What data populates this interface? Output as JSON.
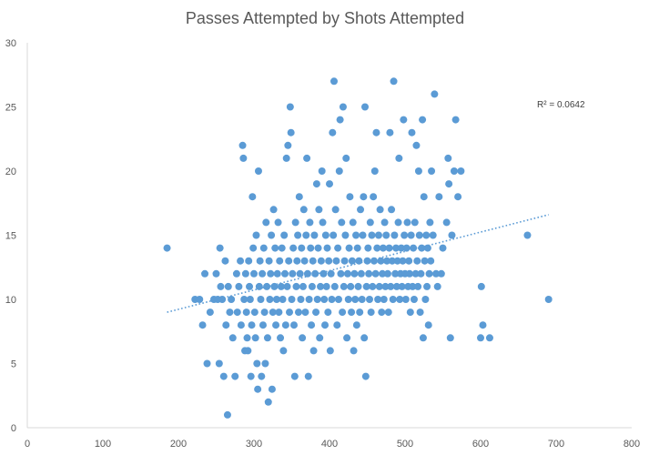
{
  "chart_data": {
    "type": "scatter",
    "title": "Passes Attempted by Shots Attempted",
    "xlabel": "",
    "ylabel": "",
    "xlim": [
      0,
      800
    ],
    "ylim": [
      0,
      30
    ],
    "x_ticks": [
      0,
      100,
      200,
      300,
      400,
      500,
      600,
      700,
      800
    ],
    "y_ticks": [
      0,
      5,
      10,
      15,
      20,
      25,
      30
    ],
    "grid": false,
    "legend": "none",
    "marker_color": "#5B9BD5",
    "trendline": {
      "type": "linear",
      "x_range": [
        185,
        690
      ],
      "y_start": 9.0,
      "y_end": 16.6,
      "color": "#5B9BD5",
      "style": "dotted",
      "r_squared_label": "R² = 0.0642"
    },
    "points": [
      [
        185,
        14
      ],
      [
        222,
        10
      ],
      [
        228,
        10
      ],
      [
        232,
        8
      ],
      [
        235,
        12
      ],
      [
        238,
        5
      ],
      [
        242,
        9
      ],
      [
        247,
        10
      ],
      [
        250,
        12
      ],
      [
        252,
        10
      ],
      [
        254,
        5
      ],
      [
        255,
        14
      ],
      [
        256,
        11
      ],
      [
        258,
        10
      ],
      [
        260,
        4
      ],
      [
        262,
        13
      ],
      [
        263,
        8
      ],
      [
        265,
        1
      ],
      [
        266,
        11
      ],
      [
        268,
        9
      ],
      [
        270,
        10
      ],
      [
        272,
        7
      ],
      [
        275,
        4
      ],
      [
        277,
        12
      ],
      [
        278,
        9
      ],
      [
        280,
        11
      ],
      [
        282,
        13
      ],
      [
        283,
        8
      ],
      [
        285,
        22
      ],
      [
        286,
        21
      ],
      [
        287,
        10
      ],
      [
        288,
        6
      ],
      [
        289,
        12
      ],
      [
        290,
        9
      ],
      [
        291,
        7
      ],
      [
        292,
        6
      ],
      [
        293,
        13
      ],
      [
        294,
        11
      ],
      [
        295,
        10
      ],
      [
        296,
        4
      ],
      [
        297,
        8
      ],
      [
        298,
        18
      ],
      [
        299,
        14
      ],
      [
        300,
        12
      ],
      [
        301,
        9
      ],
      [
        302,
        7
      ],
      [
        303,
        15
      ],
      [
        304,
        5
      ],
      [
        305,
        3
      ],
      [
        306,
        20
      ],
      [
        307,
        11
      ],
      [
        308,
        13
      ],
      [
        309,
        10
      ],
      [
        310,
        4
      ],
      [
        311,
        12
      ],
      [
        312,
        8
      ],
      [
        313,
        14
      ],
      [
        314,
        9
      ],
      [
        315,
        5
      ],
      [
        316,
        16
      ],
      [
        317,
        11
      ],
      [
        318,
        7
      ],
      [
        319,
        2
      ],
      [
        320,
        13
      ],
      [
        321,
        10
      ],
      [
        322,
        12
      ],
      [
        323,
        15
      ],
      [
        324,
        3
      ],
      [
        325,
        9
      ],
      [
        326,
        17
      ],
      [
        327,
        11
      ],
      [
        328,
        14
      ],
      [
        329,
        8
      ],
      [
        330,
        10
      ],
      [
        331,
        12
      ],
      [
        332,
        16
      ],
      [
        333,
        9
      ],
      [
        334,
        13
      ],
      [
        335,
        7
      ],
      [
        336,
        11
      ],
      [
        337,
        14
      ],
      [
        338,
        10
      ],
      [
        339,
        6
      ],
      [
        340,
        15
      ],
      [
        341,
        12
      ],
      [
        342,
        8
      ],
      [
        343,
        21
      ],
      [
        344,
        11
      ],
      [
        345,
        22
      ],
      [
        346,
        13
      ],
      [
        347,
        9
      ],
      [
        348,
        25
      ],
      [
        349,
        23
      ],
      [
        350,
        10
      ],
      [
        351,
        12
      ],
      [
        352,
        14
      ],
      [
        353,
        8
      ],
      [
        354,
        4
      ],
      [
        355,
        16
      ],
      [
        356,
        11
      ],
      [
        357,
        13
      ],
      [
        358,
        15
      ],
      [
        359,
        9
      ],
      [
        360,
        18
      ],
      [
        361,
        12
      ],
      [
        362,
        10
      ],
      [
        363,
        14
      ],
      [
        364,
        7
      ],
      [
        365,
        11
      ],
      [
        366,
        17
      ],
      [
        367,
        13
      ],
      [
        368,
        9
      ],
      [
        369,
        15
      ],
      [
        370,
        21
      ],
      [
        371,
        12
      ],
      [
        372,
        4
      ],
      [
        373,
        10
      ],
      [
        374,
        16
      ],
      [
        375,
        14
      ],
      [
        376,
        8
      ],
      [
        377,
        11
      ],
      [
        378,
        13
      ],
      [
        379,
        6
      ],
      [
        380,
        15
      ],
      [
        381,
        12
      ],
      [
        382,
        9
      ],
      [
        383,
        19
      ],
      [
        384,
        10
      ],
      [
        385,
        14
      ],
      [
        386,
        17
      ],
      [
        387,
        7
      ],
      [
        388,
        11
      ],
      [
        389,
        13
      ],
      [
        390,
        20
      ],
      [
        391,
        16
      ],
      [
        392,
        12
      ],
      [
        393,
        10
      ],
      [
        394,
        8
      ],
      [
        395,
        15
      ],
      [
        396,
        11
      ],
      [
        397,
        14
      ],
      [
        398,
        9
      ],
      [
        399,
        13
      ],
      [
        400,
        19
      ],
      [
        401,
        6
      ],
      [
        402,
        12
      ],
      [
        403,
        10
      ],
      [
        404,
        23
      ],
      [
        405,
        15
      ],
      [
        406,
        27
      ],
      [
        407,
        11
      ],
      [
        408,
        17
      ],
      [
        409,
        13
      ],
      [
        410,
        8
      ],
      [
        411,
        14
      ],
      [
        412,
        10
      ],
      [
        413,
        20
      ],
      [
        414,
        24
      ],
      [
        415,
        12
      ],
      [
        416,
        16
      ],
      [
        417,
        9
      ],
      [
        418,
        25
      ],
      [
        419,
        11
      ],
      [
        420,
        13
      ],
      [
        421,
        15
      ],
      [
        422,
        21
      ],
      [
        423,
        7
      ],
      [
        424,
        12
      ],
      [
        425,
        10
      ],
      [
        426,
        14
      ],
      [
        427,
        18
      ],
      [
        428,
        11
      ],
      [
        429,
        9
      ],
      [
        430,
        13
      ],
      [
        431,
        16
      ],
      [
        432,
        6
      ],
      [
        433,
        12
      ],
      [
        434,
        10
      ],
      [
        435,
        15
      ],
      [
        436,
        8
      ],
      [
        437,
        14
      ],
      [
        438,
        11
      ],
      [
        439,
        13
      ],
      [
        440,
        9
      ],
      [
        441,
        17
      ],
      [
        442,
        12
      ],
      [
        443,
        10
      ],
      [
        444,
        15
      ],
      [
        445,
        18
      ],
      [
        446,
        7
      ],
      [
        447,
        25
      ],
      [
        448,
        4
      ],
      [
        449,
        11
      ],
      [
        450,
        13
      ],
      [
        451,
        14
      ],
      [
        452,
        12
      ],
      [
        453,
        10
      ],
      [
        454,
        16
      ],
      [
        455,
        9
      ],
      [
        456,
        15
      ],
      [
        457,
        11
      ],
      [
        458,
        18
      ],
      [
        459,
        13
      ],
      [
        460,
        20
      ],
      [
        461,
        12
      ],
      [
        462,
        23
      ],
      [
        463,
        14
      ],
      [
        464,
        10
      ],
      [
        465,
        15
      ],
      [
        466,
        11
      ],
      [
        467,
        17
      ],
      [
        468,
        13
      ],
      [
        469,
        9
      ],
      [
        470,
        12
      ],
      [
        471,
        14
      ],
      [
        472,
        10
      ],
      [
        473,
        16
      ],
      [
        474,
        11
      ],
      [
        475,
        15
      ],
      [
        476,
        13
      ],
      [
        477,
        12
      ],
      [
        478,
        9
      ],
      [
        479,
        14
      ],
      [
        480,
        23
      ],
      [
        481,
        11
      ],
      [
        482,
        17
      ],
      [
        483,
        13
      ],
      [
        484,
        10
      ],
      [
        485,
        27
      ],
      [
        486,
        15
      ],
      [
        487,
        12
      ],
      [
        488,
        14
      ],
      [
        489,
        11
      ],
      [
        490,
        13
      ],
      [
        491,
        16
      ],
      [
        492,
        21
      ],
      [
        493,
        10
      ],
      [
        494,
        12
      ],
      [
        495,
        14
      ],
      [
        496,
        11
      ],
      [
        497,
        13
      ],
      [
        498,
        24
      ],
      [
        499,
        15
      ],
      [
        500,
        12
      ],
      [
        501,
        10
      ],
      [
        502,
        14
      ],
      [
        503,
        16
      ],
      [
        504,
        11
      ],
      [
        505,
        13
      ],
      [
        506,
        12
      ],
      [
        507,
        9
      ],
      [
        508,
        15
      ],
      [
        509,
        23
      ],
      [
        510,
        11
      ],
      [
        511,
        14
      ],
      [
        512,
        10
      ],
      [
        513,
        16
      ],
      [
        514,
        12
      ],
      [
        515,
        22
      ],
      [
        516,
        13
      ],
      [
        517,
        11
      ],
      [
        518,
        20
      ],
      [
        519,
        15
      ],
      [
        520,
        9
      ],
      [
        521,
        12
      ],
      [
        522,
        14
      ],
      [
        523,
        24
      ],
      [
        524,
        7
      ],
      [
        525,
        18
      ],
      [
        526,
        13
      ],
      [
        527,
        10
      ],
      [
        528,
        15
      ],
      [
        529,
        11
      ],
      [
        530,
        14
      ],
      [
        531,
        8
      ],
      [
        532,
        12
      ],
      [
        533,
        16
      ],
      [
        534,
        13
      ],
      [
        535,
        20
      ],
      [
        537,
        15
      ],
      [
        539,
        26
      ],
      [
        541,
        12
      ],
      [
        543,
        11
      ],
      [
        545,
        18
      ],
      [
        548,
        12
      ],
      [
        550,
        14
      ],
      [
        555,
        16
      ],
      [
        557,
        21
      ],
      [
        558,
        19
      ],
      [
        560,
        7
      ],
      [
        562,
        15
      ],
      [
        565,
        20
      ],
      [
        567,
        24
      ],
      [
        570,
        18
      ],
      [
        574,
        20
      ],
      [
        600,
        7
      ],
      [
        601,
        11
      ],
      [
        603,
        8
      ],
      [
        612,
        7
      ],
      [
        662,
        15
      ],
      [
        690,
        10
      ]
    ]
  }
}
